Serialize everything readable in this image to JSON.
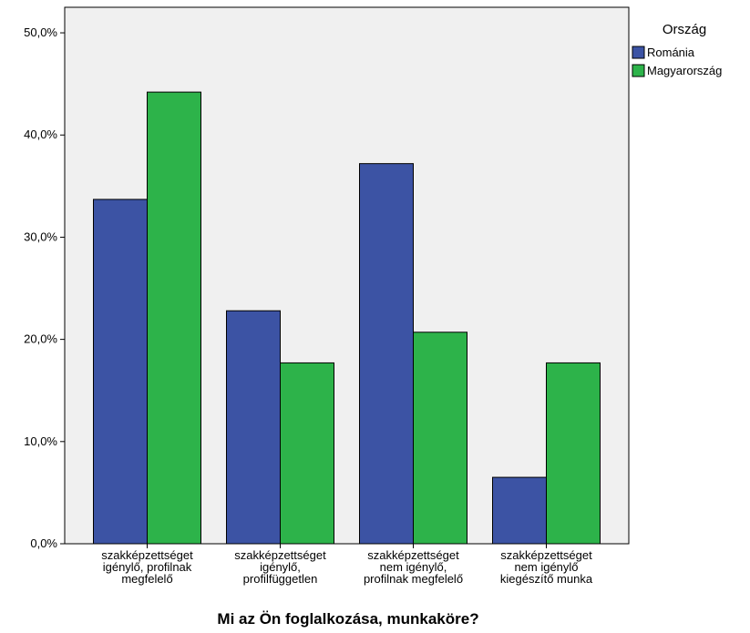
{
  "chart_data": {
    "type": "bar",
    "categories": [
      [
        "szakképzettséget",
        "igénylő, profilnak",
        "megfelelő"
      ],
      [
        "szakképzettséget",
        "igénylő,",
        "profilfüggetlen"
      ],
      [
        "szakképzettséget",
        "nem igénylő,",
        "profilnak megfelelő"
      ],
      [
        "szakképzettséget",
        "nem igénylő",
        "kiegészítő munka"
      ]
    ],
    "series": [
      {
        "name": "Románia",
        "values": [
          33.7,
          22.8,
          37.2,
          6.5
        ],
        "color": "#3C53A4"
      },
      {
        "name": "Magyarország",
        "values": [
          44.2,
          17.7,
          20.7,
          17.7
        ],
        "color": "#2DB34A"
      }
    ],
    "y_ticks": [
      "0,0%",
      "10,0%",
      "20,0%",
      "30,0%",
      "40,0%",
      "50,0%"
    ],
    "ylim": [
      0,
      52.5
    ],
    "xlabel": "Mi az Ön foglalkozása, munkaköre?",
    "ylabel": "",
    "legend_title": "Ország",
    "legend_position": "top-right",
    "plot_background": "#F0F0F0",
    "grid": false
  }
}
